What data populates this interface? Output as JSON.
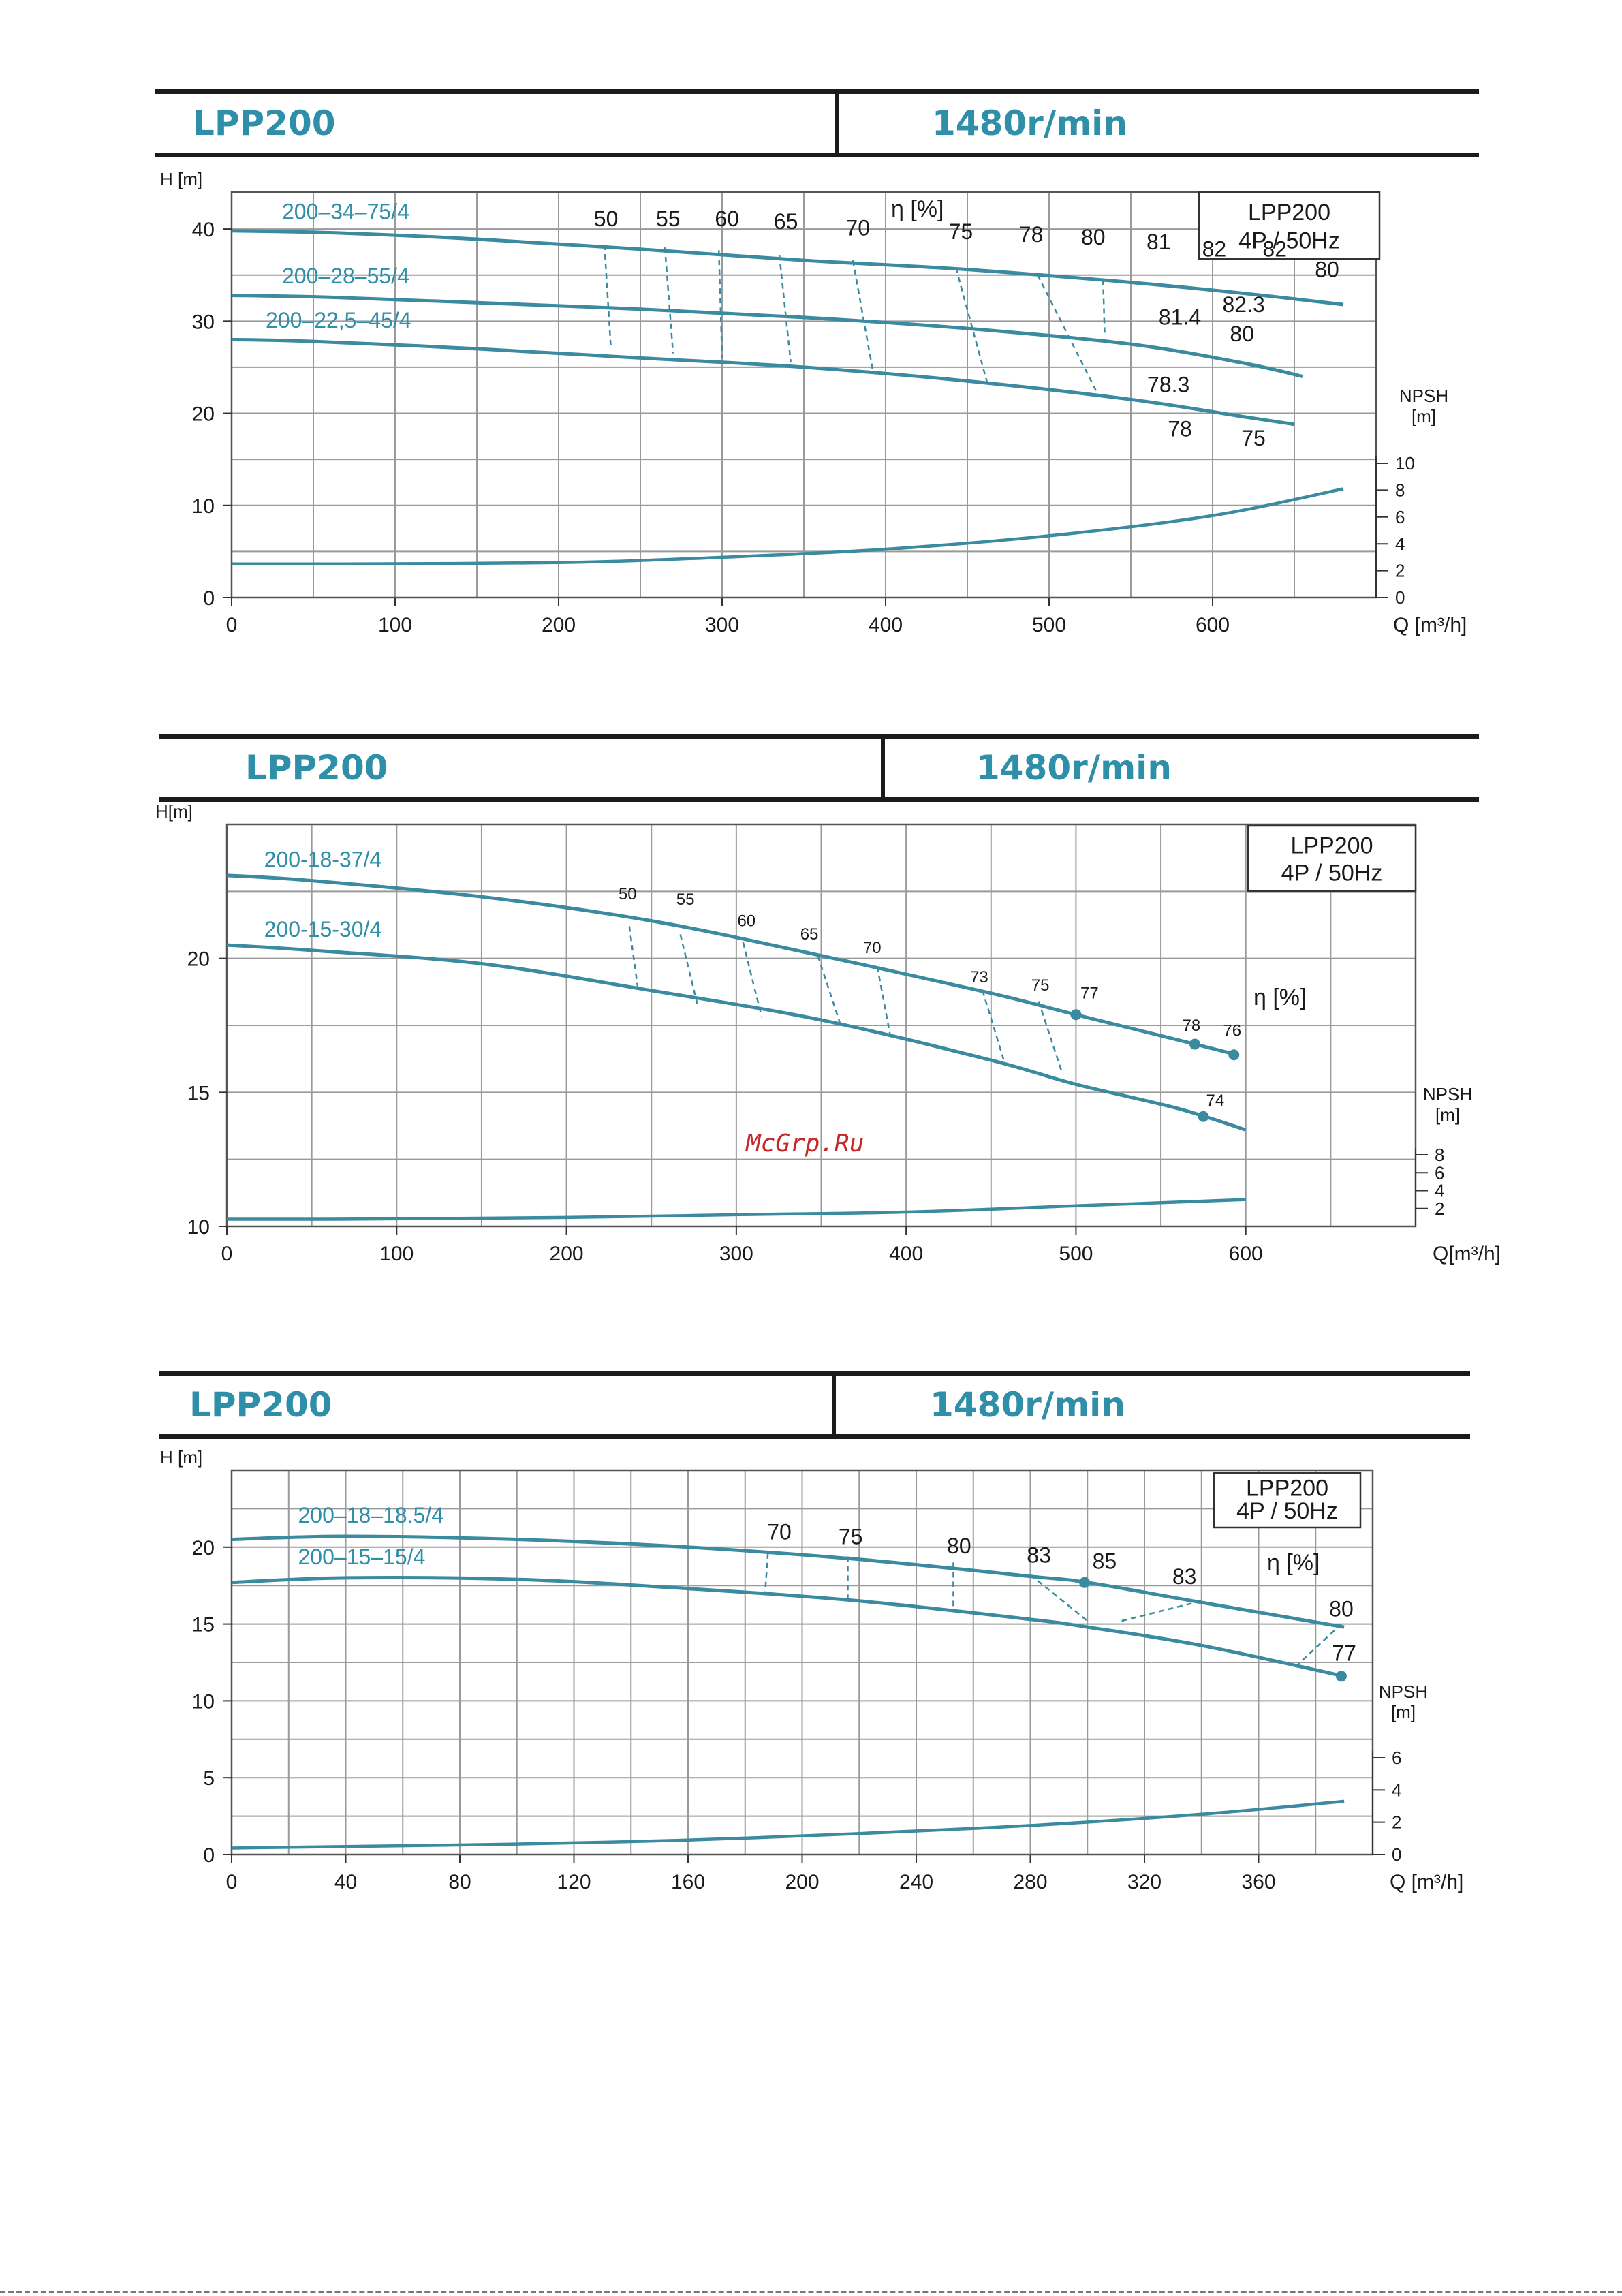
{
  "panels": [
    {
      "model": "LPP200",
      "speed": "1480r/min"
    },
    {
      "model": "LPP200",
      "speed": "1480r/min"
    },
    {
      "model": "LPP200",
      "speed": "1480r/min"
    }
  ],
  "watermark": "McGrp.Ru",
  "chart_data": [
    {
      "type": "line",
      "title": "LPP200 4P / 50Hz",
      "legend_box": [
        "LPP200",
        "4P / 50Hz"
      ],
      "xlabel": "Q [m³/h]",
      "ylabel": "H [m]",
      "y2label": [
        "NPSH",
        "[m]"
      ],
      "eta_label": "η [%]",
      "grid": true,
      "xlim": [
        0,
        700
      ],
      "ylim": [
        0,
        44
      ],
      "xticks": [
        0,
        100,
        200,
        300,
        400,
        500,
        600
      ],
      "yticks": [
        0,
        10,
        20,
        30,
        40
      ],
      "y2ticks": [
        0,
        2,
        4,
        6,
        8,
        10
      ],
      "y2lim": [
        0,
        10
      ],
      "y2top": 15,
      "series": [
        {
          "name": "200–34–75/4",
          "x": [
            0,
            60,
            150,
            250,
            350,
            450,
            550,
            620,
            680
          ],
          "y": [
            39.8,
            39.6,
            38.9,
            37.8,
            36.6,
            35.6,
            34.2,
            33.0,
            31.8
          ]
        },
        {
          "name": "200–28–55/4",
          "x": [
            0,
            60,
            150,
            250,
            350,
            450,
            550,
            620,
            655
          ],
          "y": [
            32.8,
            32.6,
            32.0,
            31.3,
            30.4,
            29.2,
            27.5,
            25.4,
            24.0
          ]
        },
        {
          "name": "200–22,5–45/4",
          "x": [
            0,
            50,
            150,
            250,
            350,
            450,
            550,
            620,
            650
          ],
          "y": [
            28.0,
            27.8,
            27.0,
            26.0,
            25.0,
            23.5,
            21.5,
            19.6,
            18.8
          ]
        }
      ],
      "npsh": {
        "x": [
          0,
          60,
          200,
          300,
          400,
          500,
          600,
          680
        ],
        "y": [
          2.5,
          2.5,
          2.6,
          3.0,
          3.6,
          4.6,
          6.1,
          8.1
        ]
      },
      "eff_labels": [
        {
          "t": "50",
          "x": 229,
          "y": 40.3
        },
        {
          "t": "55",
          "x": 267,
          "y": 40.3
        },
        {
          "t": "60",
          "x": 303,
          "y": 40.3
        },
        {
          "t": "65",
          "x": 339,
          "y": 40.0
        },
        {
          "t": "70",
          "x": 383,
          "y": 39.3
        },
        {
          "t": "75",
          "x": 446,
          "y": 38.9
        },
        {
          "t": "78",
          "x": 489,
          "y": 38.6
        },
        {
          "t": "80",
          "x": 527,
          "y": 38.3
        },
        {
          "t": "81",
          "x": 567,
          "y": 37.8
        },
        {
          "t": "82",
          "x": 601,
          "y": 37.0
        },
        {
          "t": "82",
          "x": 638,
          "y": 37.0
        },
        {
          "t": "80",
          "x": 670,
          "y": 34.8
        },
        {
          "t": "81.4",
          "x": 580,
          "y": 29.6
        },
        {
          "t": "82.3",
          "x": 619,
          "y": 31.0
        },
        {
          "t": "80",
          "x": 618,
          "y": 27.8
        },
        {
          "t": "78.3",
          "x": 573,
          "y": 22.3
        },
        {
          "t": "78",
          "x": 580,
          "y": 17.5
        },
        {
          "t": "75",
          "x": 625,
          "y": 16.5
        }
      ],
      "eff_lines": [
        [
          [
            228,
            38.3
          ],
          [
            232,
            27.0
          ]
        ],
        [
          [
            265,
            38.0
          ],
          [
            270,
            26.5
          ]
        ],
        [
          [
            298,
            37.7
          ],
          [
            300,
            26.0
          ]
        ],
        [
          [
            335,
            37.2
          ],
          [
            342,
            25.5
          ]
        ],
        [
          [
            380,
            36.6
          ],
          [
            392,
            24.8
          ]
        ],
        [
          [
            443,
            35.8
          ],
          [
            462,
            23.4
          ]
        ],
        [
          [
            493,
            35.0
          ],
          [
            530,
            22.0
          ]
        ],
        [
          [
            533,
            34.5
          ],
          [
            534,
            28.5
          ]
        ]
      ]
    },
    {
      "type": "line",
      "title": "LPP200 4P / 50Hz",
      "legend_box": [
        "LPP200",
        "4P / 50Hz"
      ],
      "xlabel": "Q[m³/h]",
      "ylabel": "H[m]",
      "y2label": [
        "NPSH",
        "[m]"
      ],
      "eta_label": "η [%]",
      "grid": true,
      "xlim": [
        0,
        700
      ],
      "ylim": [
        10,
        25
      ],
      "xticks": [
        0,
        100,
        200,
        300,
        400,
        500,
        600
      ],
      "yticks": [
        10,
        15,
        20
      ],
      "y2ticks": [
        2,
        4,
        6,
        8
      ],
      "y2lim": [
        0,
        8
      ],
      "y2top": 14,
      "series": [
        {
          "name": "200-18-37/4",
          "x": [
            0,
            50,
            150,
            250,
            350,
            450,
            500,
            570,
            595
          ],
          "y": [
            23.1,
            22.9,
            22.3,
            21.4,
            20.1,
            18.7,
            17.9,
            16.8,
            16.4
          ]
        },
        {
          "name": "200-15-30/4",
          "x": [
            0,
            50,
            150,
            250,
            350,
            450,
            500,
            560,
            600
          ],
          "y": [
            20.5,
            20.3,
            19.8,
            18.8,
            17.7,
            16.2,
            15.3,
            14.4,
            13.6
          ]
        }
      ],
      "npsh": {
        "x": [
          0,
          60,
          200,
          300,
          400,
          500,
          600
        ],
        "y": [
          0.8,
          0.8,
          1.0,
          1.3,
          1.6,
          2.3,
          3.0
        ]
      },
      "points": [
        [
          500,
          17.9
        ],
        [
          570,
          16.8
        ],
        [
          593,
          16.4
        ],
        [
          575,
          14.1
        ]
      ],
      "eff_labels": [
        {
          "t": "50",
          "x": 236,
          "y": 22.2
        },
        {
          "t": "55",
          "x": 270,
          "y": 22.0
        },
        {
          "t": "60",
          "x": 306,
          "y": 21.2
        },
        {
          "t": "65",
          "x": 343,
          "y": 20.7
        },
        {
          "t": "70",
          "x": 380,
          "y": 20.2
        },
        {
          "t": "73",
          "x": 443,
          "y": 19.1
        },
        {
          "t": "75",
          "x": 479,
          "y": 18.8
        },
        {
          "t": "77",
          "x": 508,
          "y": 18.5
        },
        {
          "t": "78",
          "x": 568,
          "y": 17.3
        },
        {
          "t": "76",
          "x": 592,
          "y": 17.1
        },
        {
          "t": "74",
          "x": 582,
          "y": 14.5
        }
      ],
      "eff_lines": [
        [
          [
            237,
            21.2
          ],
          [
            242,
            18.9
          ]
        ],
        [
          [
            267,
            20.9
          ],
          [
            277,
            18.3
          ]
        ],
        [
          [
            304,
            20.6
          ],
          [
            315,
            17.8
          ]
        ],
        [
          [
            348,
            20.1
          ],
          [
            362,
            17.4
          ]
        ],
        [
          [
            383,
            19.7
          ],
          [
            391,
            17.0
          ]
        ],
        [
          [
            445,
            18.8
          ],
          [
            458,
            16.1
          ]
        ],
        [
          [
            478,
            18.4
          ],
          [
            492,
            15.7
          ]
        ]
      ]
    },
    {
      "type": "line",
      "title": "LPP200 4P / 50Hz",
      "legend_box": [
        "LPP200",
        "4P / 50Hz"
      ],
      "xlabel": "Q [m³/h]",
      "ylabel": "H [m]",
      "y2label": [
        "NPSH",
        "[m]"
      ],
      "eta_label": "η [%]",
      "grid": true,
      "xlim": [
        0,
        400
      ],
      "ylim": [
        0,
        25
      ],
      "xticks": [
        0,
        40,
        80,
        120,
        160,
        200,
        240,
        280,
        320,
        360
      ],
      "yticks": [
        0,
        5,
        10,
        15,
        20
      ],
      "y2ticks": [
        0,
        2,
        4,
        6
      ],
      "y2lim": [
        0,
        6
      ],
      "y2top": 7,
      "series": [
        {
          "name": "200–18–18.5/4",
          "x": [
            0,
            40,
            100,
            160,
            220,
            280,
            300,
            340,
            390
          ],
          "y": [
            20.5,
            20.7,
            20.5,
            20.0,
            19.2,
            18.1,
            17.7,
            16.4,
            14.8
          ]
        },
        {
          "name": "200–15–15/4",
          "x": [
            0,
            40,
            100,
            160,
            220,
            280,
            300,
            340,
            390
          ],
          "y": [
            17.7,
            18.0,
            17.9,
            17.3,
            16.5,
            15.3,
            14.8,
            13.6,
            11.6
          ]
        }
      ],
      "npsh": {
        "x": [
          0,
          40,
          100,
          160,
          220,
          280,
          340,
          390
        ],
        "y": [
          0.4,
          0.5,
          0.65,
          0.9,
          1.3,
          1.8,
          2.5,
          3.3
        ]
      },
      "points": [
        [
          299,
          17.7
        ],
        [
          389,
          11.6
        ]
      ],
      "eff_labels": [
        {
          "t": "70",
          "x": 192,
          "y": 20.5
        },
        {
          "t": "75",
          "x": 217,
          "y": 20.2
        },
        {
          "t": "80",
          "x": 255,
          "y": 19.6
        },
        {
          "t": "83",
          "x": 283,
          "y": 19.0
        },
        {
          "t": "85",
          "x": 306,
          "y": 18.6
        },
        {
          "t": "83",
          "x": 334,
          "y": 17.6
        },
        {
          "t": "80",
          "x": 389,
          "y": 15.5
        },
        {
          "t": "77",
          "x": 390,
          "y": 12.6
        }
      ],
      "eff_lines": [
        [
          [
            188,
            19.6
          ],
          [
            187,
            17.0
          ]
        ],
        [
          [
            216,
            19.4
          ],
          [
            216,
            16.7
          ]
        ],
        [
          [
            253,
            19.0
          ],
          [
            253,
            15.9
          ]
        ],
        [
          [
            280,
            18.2
          ],
          [
            300,
            15.2
          ]
        ],
        [
          [
            312,
            15.2
          ],
          [
            340,
            16.5
          ]
        ],
        [
          [
            389,
            15.0
          ],
          [
            374,
            12.4
          ]
        ]
      ]
    }
  ]
}
